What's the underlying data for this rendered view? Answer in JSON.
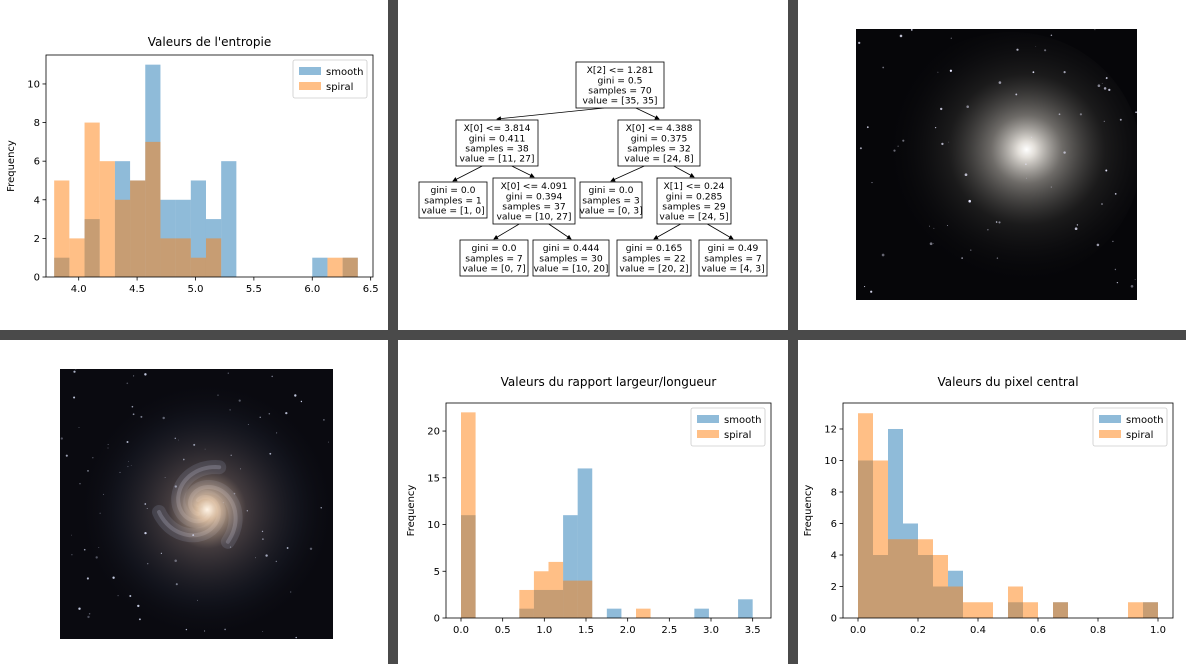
{
  "chart_data": [
    {
      "type": "histogram",
      "title": "Valeurs de l'entropie",
      "xlabel": "",
      "ylabel": "Frequency",
      "xlim": [
        3.72,
        6.52
      ],
      "ylim": [
        0,
        11.5
      ],
      "x_ticks": [
        4.0,
        4.5,
        5.0,
        5.5,
        6.0,
        6.5
      ],
      "x_tick_labels": [
        "4.0",
        "4.5",
        "5.0",
        "5.5",
        "6.0",
        "6.5"
      ],
      "y_ticks": [
        0,
        2,
        4,
        6,
        8,
        10
      ],
      "bin_edges": [
        3.79,
        3.92,
        4.05,
        4.18,
        4.31,
        4.44,
        4.57,
        4.7,
        4.83,
        4.96,
        5.09,
        5.22,
        5.35,
        5.48,
        5.61,
        5.74,
        5.87,
        6.0,
        6.13,
        6.26,
        6.39,
        6.52
      ],
      "series": [
        {
          "name": "smooth",
          "color": "#1f77b4",
          "values": [
            1,
            0,
            3,
            0,
            6,
            5,
            11,
            4,
            4,
            5,
            3,
            6,
            0,
            0,
            0,
            0,
            0,
            1,
            0,
            1,
            0
          ]
        },
        {
          "name": "spiral",
          "color": "#ff7f0e",
          "values": [
            5,
            2,
            8,
            6,
            4,
            5,
            7,
            2,
            2,
            1,
            2,
            0,
            0,
            0,
            0,
            0,
            0,
            0,
            1,
            1,
            0
          ]
        }
      ],
      "legend": "top-right",
      "grid": false
    },
    {
      "type": "diagram",
      "nodes": [
        {
          "lines": [
            "X[2] <= 1.281",
            "gini = 0.5",
            "samples = 70",
            "value = [35, 35]"
          ]
        },
        {
          "lines": [
            "X[0] <= 3.814",
            "gini = 0.411",
            "samples = 38",
            "value = [11, 27]"
          ]
        },
        {
          "lines": [
            "X[0] <= 4.388",
            "gini = 0.375",
            "samples = 32",
            "value = [24, 8]"
          ]
        },
        {
          "lines": [
            "gini = 0.0",
            "samples = 1",
            "value = [1, 0]"
          ]
        },
        {
          "lines": [
            "X[0] <= 4.091",
            "gini = 0.394",
            "samples = 37",
            "value = [10, 27]"
          ]
        },
        {
          "lines": [
            "gini = 0.0",
            "samples = 3",
            "value = [0, 3]"
          ]
        },
        {
          "lines": [
            "X[1] <= 0.24",
            "gini = 0.285",
            "samples = 29",
            "value = [24, 5]"
          ]
        },
        {
          "lines": [
            "gini = 0.0",
            "samples = 7",
            "value = [0, 7]"
          ]
        },
        {
          "lines": [
            "gini = 0.444",
            "samples = 30",
            "value = [10, 20]"
          ]
        },
        {
          "lines": [
            "gini = 0.165",
            "samples = 22",
            "value = [20, 2]"
          ]
        },
        {
          "lines": [
            "gini = 0.49",
            "samples = 7",
            "value = [4, 3]"
          ]
        }
      ]
    },
    {
      "type": "histogram",
      "title": "Valeurs du rapport largeur/longueur",
      "xlabel": "",
      "ylabel": "Frequency",
      "xlim": [
        -0.18,
        3.72
      ],
      "ylim": [
        0,
        23
      ],
      "x_ticks": [
        0.0,
        0.5,
        1.0,
        1.5,
        2.0,
        2.5,
        3.0,
        3.5
      ],
      "x_tick_labels": [
        "0.0",
        "0.5",
        "1.0",
        "1.5",
        "2.0",
        "2.5",
        "3.0",
        "3.5"
      ],
      "y_ticks": [
        0,
        5,
        10,
        15,
        20
      ],
      "bin_edges": [
        0.0,
        0.175,
        0.35,
        0.525,
        0.7,
        0.875,
        1.05,
        1.225,
        1.4,
        1.575,
        1.75,
        1.925,
        2.1,
        2.275,
        2.45,
        2.625,
        2.8,
        2.975,
        3.15,
        3.325,
        3.5
      ],
      "series": [
        {
          "name": "smooth",
          "color": "#1f77b4",
          "values": [
            11,
            0,
            0,
            0,
            1,
            3,
            3,
            11,
            16,
            0,
            1,
            0,
            0,
            0,
            0,
            0,
            1,
            0,
            0,
            2
          ]
        },
        {
          "name": "spiral",
          "color": "#ff7f0e",
          "values": [
            22,
            0,
            0,
            0,
            3,
            5,
            6,
            4,
            4,
            0,
            0,
            0,
            1,
            0,
            0,
            0,
            0,
            0,
            0,
            0
          ]
        }
      ],
      "legend": "top-right",
      "grid": false
    },
    {
      "type": "histogram",
      "title": "Valeurs du pixel central",
      "xlabel": "",
      "ylabel": "Frequency",
      "xlim": [
        -0.05,
        1.05
      ],
      "ylim": [
        0,
        13.65
      ],
      "x_ticks": [
        0.0,
        0.2,
        0.4,
        0.6,
        0.8,
        1.0
      ],
      "x_tick_labels": [
        "0.0",
        "0.2",
        "0.4",
        "0.6",
        "0.8",
        "1.0"
      ],
      "y_ticks": [
        0,
        2,
        4,
        6,
        8,
        10,
        12
      ],
      "bin_edges": [
        0.0,
        0.05,
        0.1,
        0.15,
        0.2,
        0.25,
        0.3,
        0.35,
        0.4,
        0.45,
        0.5,
        0.55,
        0.6,
        0.65,
        0.7,
        0.75,
        0.8,
        0.85,
        0.9,
        0.95,
        1.0
      ],
      "series": [
        {
          "name": "smooth",
          "color": "#1f77b4",
          "values": [
            10,
            4,
            12,
            6,
            4,
            2,
            3,
            0,
            0,
            0,
            1,
            0,
            0,
            1,
            0,
            0,
            0,
            0,
            0,
            1
          ]
        },
        {
          "name": "spiral",
          "color": "#ff7f0e",
          "values": [
            13,
            10,
            5,
            5,
            5,
            4,
            2,
            1,
            1,
            0,
            2,
            1,
            0,
            1,
            0,
            0,
            0,
            0,
            1,
            1
          ]
        }
      ],
      "legend": "top-right",
      "grid": false
    }
  ]
}
